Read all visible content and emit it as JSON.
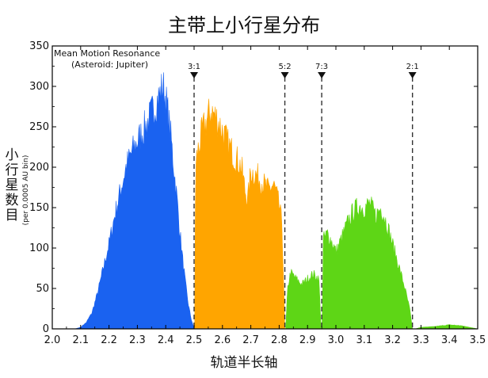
{
  "chart_data": {
    "type": "area",
    "title": "主带上小行星分布",
    "xlabel": "轨道半长轴",
    "ylabel_main": "小行星数目",
    "ylabel_sub": "(per 0.0005 AU bin)",
    "xlim": [
      2.0,
      3.5
    ],
    "ylim": [
      0,
      350
    ],
    "x_ticks": [
      "2.0",
      "2.1",
      "2.2",
      "2.3",
      "2.4",
      "2.5",
      "2.6",
      "2.7",
      "2.8",
      "2.9",
      "3.0",
      "3.1",
      "3.2",
      "3.3",
      "3.4",
      "3.5"
    ],
    "y_ticks": [
      "0",
      "50",
      "100",
      "150",
      "200",
      "250",
      "300",
      "350"
    ],
    "legend_title_1": "Mean Motion Resonance",
    "legend_title_2": "(Asteroid: Jupiter)",
    "resonances": [
      {
        "label": "3:1",
        "a": 2.5
      },
      {
        "label": "5:2",
        "a": 2.82
      },
      {
        "label": "7:3",
        "a": 2.95
      },
      {
        "label": "2:1",
        "a": 3.27
      }
    ],
    "series": [
      {
        "color": "#1a62f0",
        "points": [
          [
            2.05,
            0
          ],
          [
            2.08,
            0
          ],
          [
            2.1,
            2
          ],
          [
            2.12,
            8
          ],
          [
            2.14,
            20
          ],
          [
            2.16,
            45
          ],
          [
            2.18,
            75
          ],
          [
            2.2,
            105
          ],
          [
            2.22,
            140
          ],
          [
            2.24,
            170
          ],
          [
            2.26,
            200
          ],
          [
            2.28,
            218
          ],
          [
            2.3,
            232
          ],
          [
            2.32,
            245
          ],
          [
            2.34,
            258
          ],
          [
            2.36,
            275
          ],
          [
            2.38,
            290
          ],
          [
            2.39,
            300
          ],
          [
            2.4,
            285
          ],
          [
            2.41,
            260
          ],
          [
            2.42,
            230
          ],
          [
            2.43,
            195
          ],
          [
            2.44,
            160
          ],
          [
            2.45,
            120
          ],
          [
            2.46,
            85
          ],
          [
            2.47,
            55
          ],
          [
            2.48,
            30
          ],
          [
            2.49,
            12
          ],
          [
            2.5,
            0
          ]
        ]
      },
      {
        "color": "#ffa500",
        "points": [
          [
            2.502,
            0
          ],
          [
            2.505,
            190
          ],
          [
            2.51,
            215
          ],
          [
            2.53,
            245
          ],
          [
            2.55,
            262
          ],
          [
            2.56,
            270
          ],
          [
            2.58,
            260
          ],
          [
            2.6,
            245
          ],
          [
            2.62,
            228
          ],
          [
            2.64,
            215
          ],
          [
            2.66,
            205
          ],
          [
            2.67,
            195
          ],
          [
            2.68,
            170
          ],
          [
            2.69,
            160
          ],
          [
            2.7,
            195
          ],
          [
            2.72,
            190
          ],
          [
            2.74,
            182
          ],
          [
            2.76,
            172
          ],
          [
            2.78,
            178
          ],
          [
            2.79,
            168
          ],
          [
            2.8,
            152
          ],
          [
            2.81,
            130
          ],
          [
            2.82,
            0
          ]
        ]
      },
      {
        "color": "#5ed616",
        "points": [
          [
            2.823,
            0
          ],
          [
            2.83,
            50
          ],
          [
            2.84,
            70
          ],
          [
            2.86,
            62
          ],
          [
            2.88,
            55
          ],
          [
            2.9,
            62
          ],
          [
            2.92,
            68
          ],
          [
            2.94,
            62
          ],
          [
            2.948,
            0
          ],
          [
            2.952,
            0
          ],
          [
            2.955,
            110
          ],
          [
            2.97,
            118
          ],
          [
            2.99,
            105
          ],
          [
            3.0,
            95
          ],
          [
            3.02,
            112
          ],
          [
            3.04,
            130
          ],
          [
            3.06,
            145
          ],
          [
            3.08,
            152
          ],
          [
            3.1,
            150
          ],
          [
            3.12,
            155
          ],
          [
            3.14,
            140
          ],
          [
            3.16,
            150
          ],
          [
            3.18,
            130
          ],
          [
            3.2,
            105
          ],
          [
            3.22,
            80
          ],
          [
            3.24,
            55
          ],
          [
            3.26,
            25
          ],
          [
            3.27,
            0
          ]
        ]
      },
      {
        "color": "#5ed616",
        "points": [
          [
            3.28,
            0
          ],
          [
            3.3,
            2
          ],
          [
            3.35,
            3
          ],
          [
            3.4,
            5
          ],
          [
            3.44,
            4
          ],
          [
            3.47,
            2
          ],
          [
            3.5,
            0
          ]
        ]
      }
    ]
  }
}
